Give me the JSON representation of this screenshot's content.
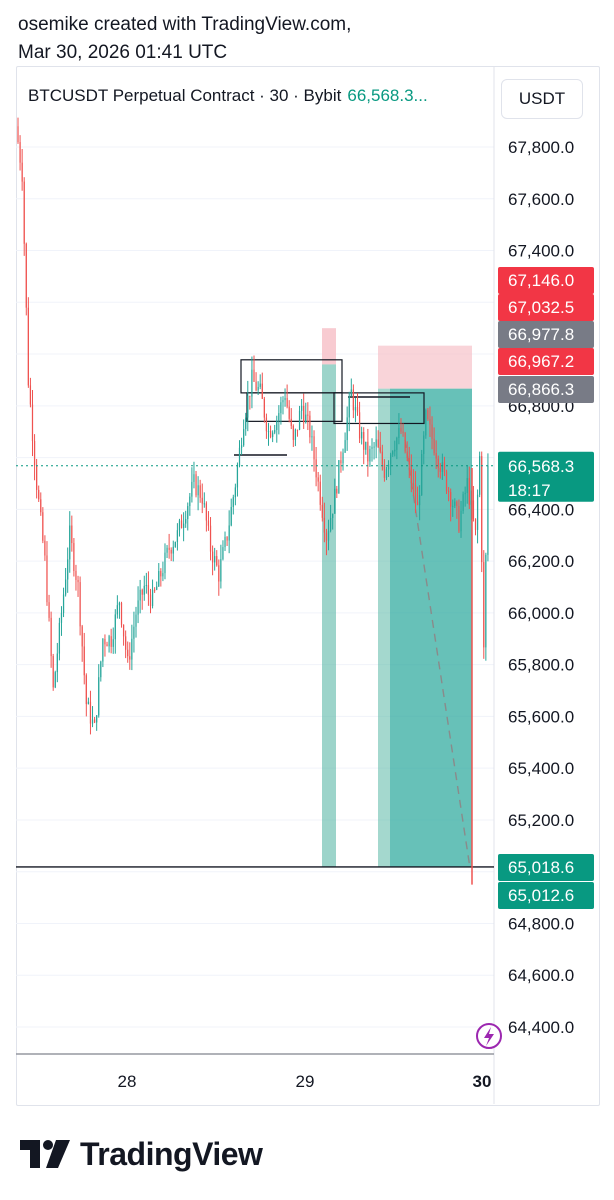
{
  "header": {
    "creator_line": "osemike created with TradingView.com,",
    "timestamp_line": "Mar 30, 2026 01:41 UTC"
  },
  "legend": {
    "symbol_text": "BTCUSDT Perpetual Contract · 30 · Bybit",
    "last_price": "66,568.3...",
    "currency_button": "USDT"
  },
  "footer": {
    "brand": "TradingView"
  },
  "colors": {
    "up": "#26a69a",
    "down": "#ef5350",
    "price_badge": "#089981",
    "gray_badge": "#787b86",
    "red_badge": "#f23645",
    "profit_zone": "#5ab8a6",
    "loss_zone": "#f7c5cc"
  },
  "chart_data": {
    "type": "candlestick",
    "title": "BTCUSDT Perpetual Contract · 30 · Bybit",
    "timeframe": "30",
    "ylim": [
      64300,
      67950
    ],
    "y_ticks": [
      {
        "value": 67800,
        "label": "67,800.0"
      },
      {
        "value": 67600,
        "label": "67,600.0"
      },
      {
        "value": 67400,
        "label": "67,400.0"
      },
      {
        "value": 67200,
        "label": "67,200.0"
      },
      {
        "value": 67000,
        "label": "67,000.0"
      },
      {
        "value": 66800,
        "label": "66,800.0"
      },
      {
        "value": 66600,
        "label": "66,600.0"
      },
      {
        "value": 66400,
        "label": "66,400.0"
      },
      {
        "value": 66200,
        "label": "66,200.0"
      },
      {
        "value": 66000,
        "label": "66,000.0"
      },
      {
        "value": 65800,
        "label": "65,800.0"
      },
      {
        "value": 65600,
        "label": "65,600.0"
      },
      {
        "value": 65400,
        "label": "65,400.0"
      },
      {
        "value": 65200,
        "label": "65,200.0"
      },
      {
        "value": 65000,
        "label": "65,000.0"
      },
      {
        "value": 64800,
        "label": "64,800.0"
      },
      {
        "value": 64600,
        "label": "64,600.0"
      },
      {
        "value": 64400,
        "label": "64,400.0"
      }
    ],
    "x_ticks": [
      {
        "label": "28",
        "bold": false
      },
      {
        "label": "29",
        "bold": false
      },
      {
        "label": "30",
        "bold": true
      }
    ],
    "current_price": {
      "value": 66568.3,
      "label": "66,568.3",
      "countdown": "18:17"
    },
    "price_badges": [
      {
        "value": 67146.0,
        "label": "67,146.0",
        "color": "red"
      },
      {
        "value": 67032.5,
        "label": "67,032.5",
        "color": "red"
      },
      {
        "value": 66977.8,
        "label": "66,977.8",
        "color": "gray"
      },
      {
        "value": 66967.2,
        "label": "66,967.2",
        "color": "red"
      },
      {
        "value": 66866.3,
        "label": "66,866.3",
        "color": "gray"
      },
      {
        "value": 65018.6,
        "label": "65,018.6",
        "color": "green"
      },
      {
        "value": 65012.6,
        "label": "65,012.6",
        "color": "green"
      }
    ],
    "horizontal_line": {
      "value": 65018.6
    },
    "short_positions": [
      {
        "entry": 66960,
        "stop": 67100,
        "target": 65018.6
      },
      {
        "entry": 66866.3,
        "stop": 67032.5,
        "target": 65018.6
      }
    ],
    "boxes": [
      {
        "top": 66977.8,
        "bottom": 66850
      },
      {
        "top": 66850,
        "bottom": 66740
      },
      {
        "top": 66830,
        "bottom": 66720
      }
    ],
    "support_lines": [
      {
        "value": 66620
      },
      {
        "value": 66866.3
      }
    ],
    "candle_count": 228,
    "candles_ohlc_note": "Approximated path",
    "path_points": [
      [
        0,
        67880
      ],
      [
        3,
        67700
      ],
      [
        6,
        66900
      ],
      [
        10,
        66500
      ],
      [
        14,
        66200
      ],
      [
        18,
        65700
      ],
      [
        22,
        66000
      ],
      [
        26,
        66300
      ],
      [
        30,
        66100
      ],
      [
        34,
        65650
      ],
      [
        38,
        65550
      ],
      [
        42,
        65900
      ],
      [
        46,
        65900
      ],
      [
        50,
        66050
      ],
      [
        54,
        65800
      ],
      [
        58,
        66000
      ],
      [
        62,
        66100
      ],
      [
        66,
        66050
      ],
      [
        70,
        66150
      ],
      [
        74,
        66250
      ],
      [
        78,
        66300
      ],
      [
        82,
        66400
      ],
      [
        86,
        66500
      ],
      [
        90,
        66450
      ],
      [
        94,
        66250
      ],
      [
        98,
        66150
      ],
      [
        102,
        66300
      ],
      [
        106,
        66500
      ],
      [
        110,
        66750
      ],
      [
        114,
        66900
      ],
      [
        118,
        66850
      ],
      [
        122,
        66700
      ],
      [
        126,
        66750
      ],
      [
        130,
        66850
      ],
      [
        134,
        66650
      ],
      [
        138,
        66800
      ],
      [
        142,
        66700
      ],
      [
        146,
        66500
      ],
      [
        150,
        66300
      ],
      [
        154,
        66450
      ],
      [
        158,
        66650
      ],
      [
        162,
        66850
      ],
      [
        166,
        66700
      ],
      [
        170,
        66600
      ],
      [
        174,
        66650
      ],
      [
        178,
        66550
      ],
      [
        182,
        66650
      ],
      [
        186,
        66700
      ],
      [
        190,
        66550
      ],
      [
        194,
        66400
      ],
      [
        198,
        66750
      ],
      [
        202,
        66650
      ],
      [
        206,
        66550
      ],
      [
        210,
        66450
      ],
      [
        214,
        66350
      ],
      [
        218,
        66500
      ],
      [
        222,
        66300
      ],
      [
        224,
        66600
      ],
      [
        226,
        65850
      ],
      [
        228,
        66568
      ]
    ]
  }
}
